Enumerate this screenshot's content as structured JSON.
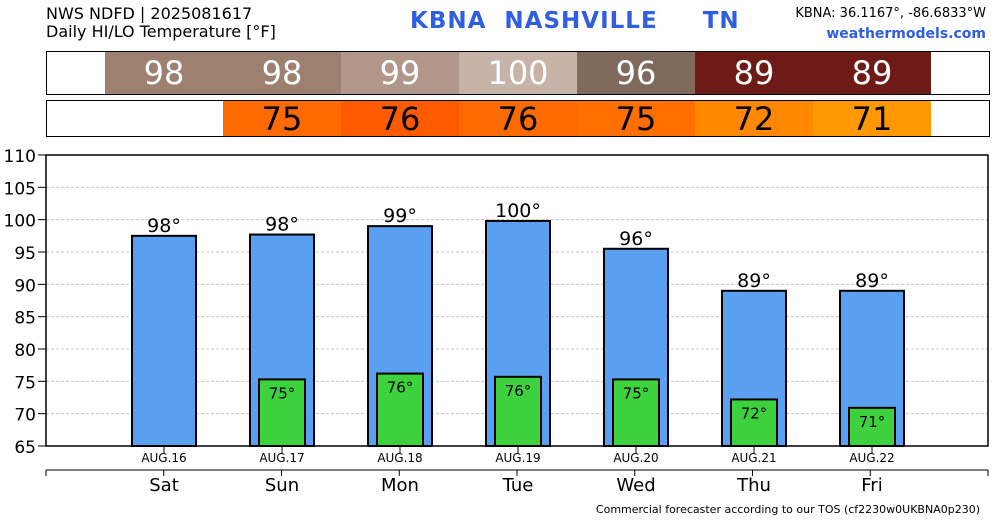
{
  "header": {
    "line1": "NWS NDFD | 2025081617",
    "line2": "Daily HI/LO Temperature [°F]",
    "station_id": "KBNA",
    "station_name": "NASHVILLE",
    "state": "TN",
    "coords": "KBNA: 36.1167°, -86.6833°W",
    "site": "weathermodels.com"
  },
  "footer": "Commercial forecaster according to our TOS (cf2230w0UKBNA0p230)",
  "colors": {
    "hi_bar": "#5b9ff0",
    "lo_bar": "#3dd13d",
    "hi_strip": [
      "#9e8070",
      "#9e8070",
      "#b0978a",
      "#c7b3a7",
      "#806a5c",
      "#6e1a17",
      "#6e1a17"
    ],
    "lo_strip": [
      "#ff6a00",
      "#ff5a00",
      "#ff6a00",
      "#ff6f00",
      "#ff8800",
      "#ff9800"
    ]
  },
  "chart_data": {
    "type": "bar",
    "days": [
      "Sat",
      "Sun",
      "Mon",
      "Tue",
      "Wed",
      "Thu",
      "Fri"
    ],
    "categories": [
      "AUG.16",
      "AUG.17",
      "AUG.18",
      "AUG.19",
      "AUG.20",
      "AUG.21",
      "AUG.22"
    ],
    "ylim": [
      65,
      110
    ],
    "yticks": [
      65,
      70,
      75,
      80,
      85,
      90,
      95,
      100,
      105,
      110
    ],
    "grid": true,
    "series": [
      {
        "values": [
          97.5,
          97.7,
          99,
          99.8,
          95.5,
          89,
          89
        ],
        "labels": [
          "98°",
          "98°",
          "99°",
          "100°",
          "96°",
          "89°",
          "89°"
        ]
      },
      {
        "values": [
          null,
          75.3,
          76.2,
          75.7,
          75.3,
          72.2,
          70.9
        ],
        "labels": [
          "",
          "75°",
          "76°",
          "76°",
          "75°",
          "72°",
          "71°"
        ]
      }
    ],
    "hi_strip": [
      "98",
      "98",
      "99",
      "100",
      "96",
      "89",
      "89"
    ],
    "lo_strip": [
      "75",
      "76",
      "76",
      "75",
      "72",
      "71"
    ]
  }
}
